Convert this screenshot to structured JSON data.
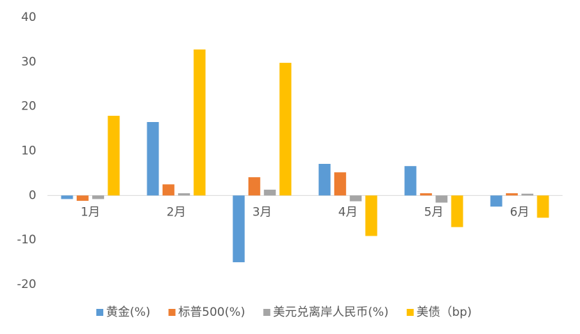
{
  "chart_data": {
    "type": "bar",
    "categories": [
      "1月",
      "2月",
      "3月",
      "4月",
      "5月",
      "6月"
    ],
    "series": [
      {
        "name": "黄金(%)",
        "color": "#5b9bd5",
        "values": [
          -0.8,
          16.5,
          -15,
          7.1,
          6.6,
          -2.5
        ]
      },
      {
        "name": "标普500(%)",
        "color": "#ed7d31",
        "values": [
          -1.2,
          2.5,
          4.1,
          5.2,
          0.5,
          0.5
        ]
      },
      {
        "name": "美元兑离岸人民币(%)",
        "color": "#a5a5a5",
        "values": [
          -0.8,
          0.5,
          1.3,
          -1.3,
          -1.6,
          0.4
        ]
      },
      {
        "name": "美债（bp)",
        "color": "#ffc000",
        "values": [
          17.9,
          32.8,
          29.8,
          -9.1,
          -7.1,
          -5
        ]
      }
    ],
    "ylim": [
      -20,
      40
    ],
    "yticks": [
      -20,
      -10,
      0,
      10,
      20,
      30,
      40
    ],
    "legend": "bottom"
  }
}
